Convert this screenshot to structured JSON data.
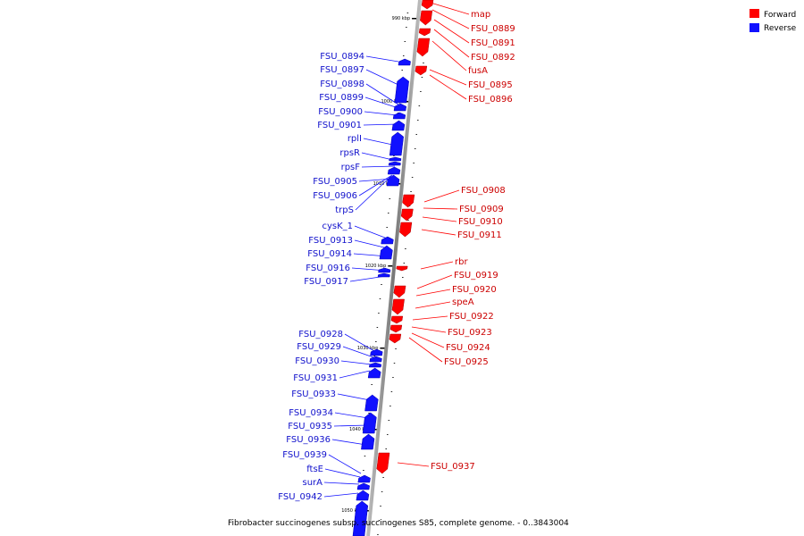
{
  "colors": {
    "forward": "#ff0000",
    "reverse": "#1111ff",
    "forward_text": "#cc0000",
    "reverse_text": "#1111cc",
    "backbone": "#888888"
  },
  "legend": {
    "forward": "Forward",
    "reverse": "Reverse"
  },
  "caption": "Fibrobacter succinogenes subsp. succinogenes S85, complete genome. - 0..3843004",
  "kbp_labels": [
    "990 kbp",
    "1000 kbp",
    "1010 kbp",
    "1020 kbp",
    "1030 kbp",
    "1040 kbp",
    "1050 kbp"
  ],
  "forward_genes": [
    "map",
    "FSU_0889",
    "FSU_0891",
    "FSU_0892",
    "fusA",
    "FSU_0895",
    "FSU_0896",
    "FSU_0908",
    "FSU_0909",
    "FSU_0910",
    "FSU_0911",
    "rbr",
    "FSU_0919",
    "FSU_0920",
    "speA",
    "FSU_0922",
    "FSU_0923",
    "FSU_0924",
    "FSU_0925",
    "FSU_0937"
  ],
  "reverse_genes": [
    "FSU_0894",
    "FSU_0897",
    "FSU_0898",
    "FSU_0899",
    "FSU_0900",
    "FSU_0901",
    "rplI",
    "rpsR",
    "rpsF",
    "FSU_0905",
    "FSU_0906",
    "trpS",
    "cysK_1",
    "FSU_0913",
    "FSU_0914",
    "FSU_0916",
    "FSU_0917",
    "FSU_0928",
    "FSU_0929",
    "FSU_0930",
    "FSU_0931",
    "FSU_0933",
    "FSU_0934",
    "FSU_0935",
    "FSU_0936",
    "FSU_0939",
    "ftsE",
    "surA",
    "FSU_0942"
  ]
}
